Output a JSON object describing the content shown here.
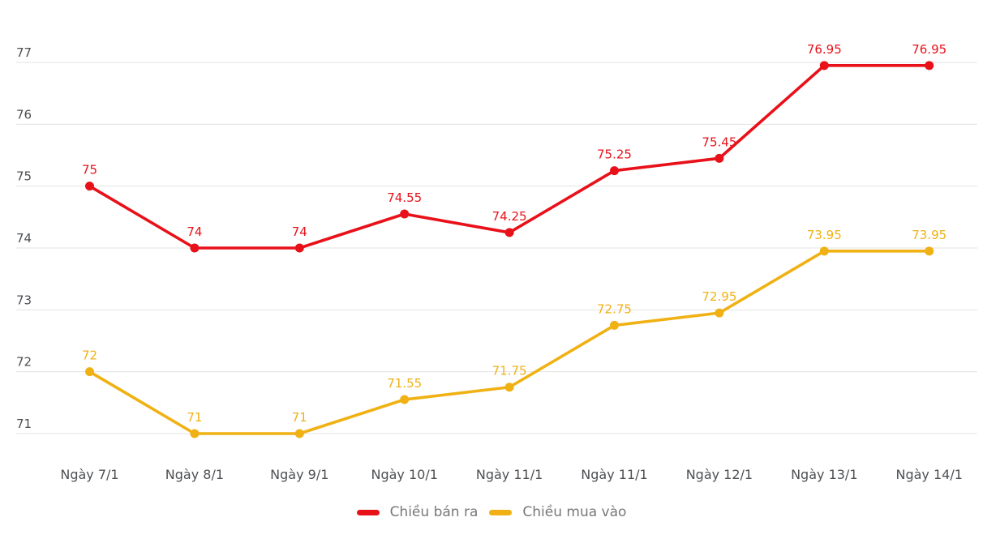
{
  "page": {
    "background": "#ffffff"
  },
  "chart_data": {
    "type": "line",
    "title": "",
    "xlabel": "",
    "ylabel": "",
    "categories": [
      "Ngày 7/1",
      "Ngày 8/1",
      "Ngày 9/1",
      "Ngày 10/1",
      "Ngày 11/1",
      "Ngày 11/1",
      "Ngày 12/1",
      "Ngày 13/1",
      "Ngày 14/1"
    ],
    "series": [
      {
        "name": "Chiều bán ra",
        "color": "#e8111a",
        "values": [
          75,
          74,
          74,
          74.55,
          74.25,
          75.25,
          75.45,
          76.95,
          76.95
        ],
        "labels": [
          "75",
          "74",
          "74",
          "74.55",
          "74.25",
          "75.25",
          "75.45",
          "76.95",
          "76.95"
        ]
      },
      {
        "name": "Chiều mua vào",
        "color": "#f0b114",
        "values": [
          72,
          71,
          71,
          71.55,
          71.75,
          72.75,
          72.95,
          73.95,
          73.95
        ],
        "labels": [
          "72",
          "71",
          "71",
          "71.55",
          "71.75",
          "72.75",
          "72.95",
          "73.95",
          "73.95"
        ]
      }
    ],
    "y_ticks": [
      77,
      76,
      75,
      74,
      73,
      72,
      71
    ],
    "ylim": [
      71,
      77
    ],
    "grid": true,
    "legend_position": "bottom",
    "colors": {
      "gridline": "#e3e3e3",
      "tick_label": "#4d4f52",
      "legend_text": "#76787a"
    }
  }
}
